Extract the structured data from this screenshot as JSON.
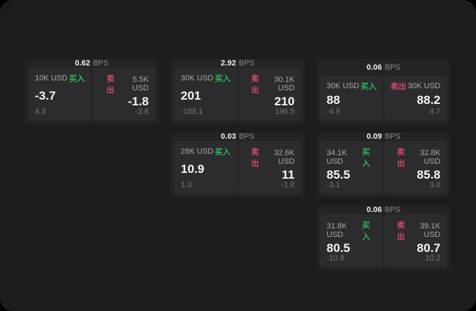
{
  "labels": {
    "bps": "BPS",
    "buy": "买入",
    "sell": "卖出"
  },
  "colors": {
    "background": "#000000",
    "canvas": "#1d1d1f",
    "card": "#242426",
    "panel": "#2c2c2e",
    "buy_green": "#2eb858",
    "sell_red": "#cf4a63",
    "value_white": "#f5f5f7",
    "muted_gray": "#8a8a8e"
  },
  "cards": [
    {
      "spread": "0.62",
      "buy": {
        "size": "10K USD",
        "value": "-3.7",
        "change": "4.3"
      },
      "sell": {
        "size": "5.5K USD",
        "value": "-1.8",
        "change": "-2.6"
      }
    },
    {
      "spread": "2.92",
      "buy": {
        "size": "30K USD",
        "value": "201",
        "change": "-188.1"
      },
      "sell": {
        "size": "30.1K USD",
        "value": "210",
        "change": "196.5"
      }
    },
    {
      "spread": "0.06",
      "buy": {
        "size": "30K USD",
        "value": "88",
        "change": "-4.9"
      },
      "sell": {
        "size": "30K USD",
        "value": "88.2",
        "change": "4.7"
      }
    },
    {
      "spread": "0.03",
      "buy": {
        "size": "28K USD",
        "value": "10.9",
        "change": "1.3"
      },
      "sell": {
        "size": "32.6K USD",
        "value": "11",
        "change": "-1.8"
      }
    },
    {
      "spread": "0.09",
      "buy": {
        "size": "34.1K USD",
        "value": "85.5",
        "change": "-3.1"
      },
      "sell": {
        "size": "32.8K USD",
        "value": "85.8",
        "change": "3.0"
      }
    },
    {
      "spread": "0.06",
      "buy": {
        "size": "31.8K USD",
        "value": "80.5",
        "change": "-10.8"
      },
      "sell": {
        "size": "39.1K USD",
        "value": "80.7",
        "change": "10.2"
      }
    }
  ]
}
